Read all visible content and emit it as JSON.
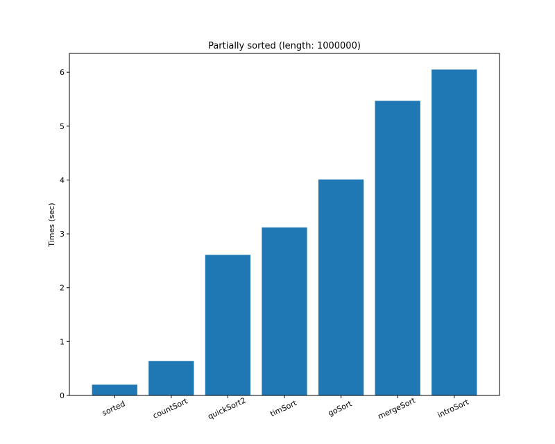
{
  "chart_data": {
    "type": "bar",
    "title": "Partially sorted (length: 1000000)",
    "xlabel": "",
    "ylabel": "Times (sec)",
    "categories": [
      "sorted",
      "countSort",
      "quickSort2",
      "timSort",
      "goSort",
      "mergeSort",
      "introSort"
    ],
    "values": [
      0.2,
      0.64,
      2.61,
      3.12,
      4.01,
      5.47,
      6.05
    ],
    "ylim": [
      0,
      6.35
    ],
    "yticks": [
      0,
      1,
      2,
      3,
      4,
      5,
      6
    ],
    "bar_color": "#1f77b4",
    "grid": false,
    "legend": "none"
  }
}
